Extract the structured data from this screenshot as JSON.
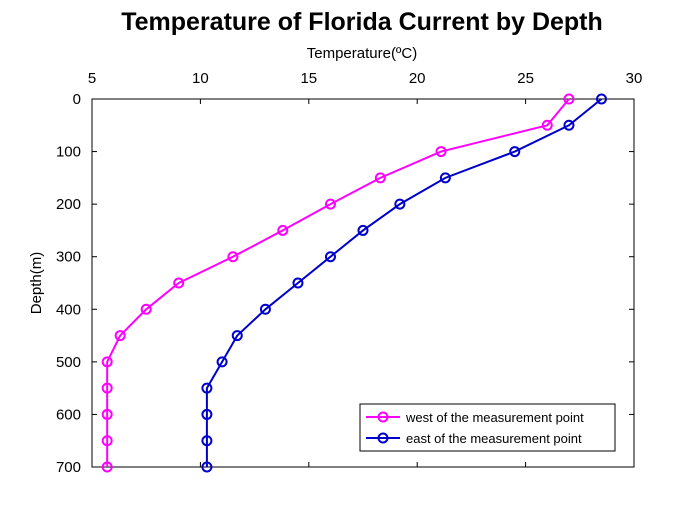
{
  "chart_data": {
    "type": "line",
    "title": "Temperature of Florida Current by Depth",
    "xlabel": "Temperature(ºC)",
    "ylabel": "Depth(m)",
    "xlim": [
      5,
      30
    ],
    "ylim": [
      0,
      700
    ],
    "y_reversed": true,
    "x_axis_position": "top",
    "x_ticks": [
      5,
      10,
      15,
      20,
      25,
      30
    ],
    "y_ticks": [
      0,
      100,
      200,
      300,
      400,
      500,
      600,
      700
    ],
    "grid": false,
    "legend_position": "bottom-right",
    "series": [
      {
        "name": "west of the measurement point",
        "color": "#ff00ff",
        "marker": "circle",
        "points": [
          {
            "x": 27.0,
            "y": 0
          },
          {
            "x": 26.0,
            "y": 50
          },
          {
            "x": 21.1,
            "y": 100
          },
          {
            "x": 18.3,
            "y": 150
          },
          {
            "x": 16.0,
            "y": 200
          },
          {
            "x": 13.8,
            "y": 250
          },
          {
            "x": 11.5,
            "y": 300
          },
          {
            "x": 9.0,
            "y": 350
          },
          {
            "x": 7.5,
            "y": 400
          },
          {
            "x": 6.3,
            "y": 450
          },
          {
            "x": 5.7,
            "y": 500
          },
          {
            "x": 5.7,
            "y": 550
          },
          {
            "x": 5.7,
            "y": 600
          },
          {
            "x": 5.7,
            "y": 650
          },
          {
            "x": 5.7,
            "y": 700
          }
        ]
      },
      {
        "name": "east of the measurement point",
        "color": "#0000cc",
        "marker": "circle",
        "points": [
          {
            "x": 28.5,
            "y": 0
          },
          {
            "x": 27.0,
            "y": 50
          },
          {
            "x": 24.5,
            "y": 100
          },
          {
            "x": 21.3,
            "y": 150
          },
          {
            "x": 19.2,
            "y": 200
          },
          {
            "x": 17.5,
            "y": 250
          },
          {
            "x": 16.0,
            "y": 300
          },
          {
            "x": 14.5,
            "y": 350
          },
          {
            "x": 13.0,
            "y": 400
          },
          {
            "x": 11.7,
            "y": 450
          },
          {
            "x": 11.0,
            "y": 500
          },
          {
            "x": 10.3,
            "y": 550
          },
          {
            "x": 10.3,
            "y": 600
          },
          {
            "x": 10.3,
            "y": 650
          },
          {
            "x": 10.3,
            "y": 700
          }
        ]
      }
    ]
  }
}
